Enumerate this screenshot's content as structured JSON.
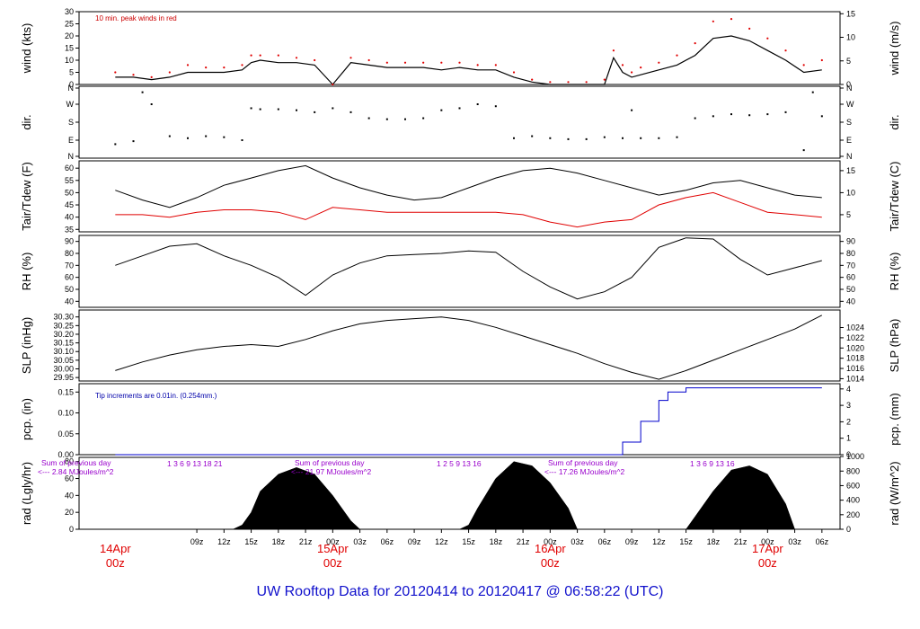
{
  "title": "UW Rooftop Data for 20120414  to  20120417 @ 06:58:22  (UTC)",
  "time_axis": {
    "hour_ticks": [
      "09z",
      "12z",
      "15z",
      "18z",
      "21z",
      "00z",
      "03z",
      "06z",
      "09z",
      "12z",
      "15z",
      "18z",
      "21z",
      "00z",
      "03z",
      "06z",
      "09z",
      "12z",
      "15z",
      "18z",
      "21z",
      "00z",
      "03z",
      "06z"
    ],
    "day_labels": [
      {
        "date": "14Apr",
        "time": "00z"
      },
      {
        "date": "15Apr",
        "time": "00z"
      },
      {
        "date": "16Apr",
        "time": "00z"
      },
      {
        "date": "17Apr",
        "time": "00z"
      }
    ]
  },
  "colors": {
    "primary": "#000000",
    "peak": "#e00000",
    "precip": "#0000cc",
    "title": "#1111cc",
    "radnote": "#9900cc"
  },
  "chart_data": [
    {
      "type": "line",
      "id": "wind",
      "ylabel": "wind (kts)",
      "ylabel_right": "wind (m/s)",
      "ylim": [
        0,
        30
      ],
      "yticks": [
        "0",
        "5",
        "10",
        "15",
        "20",
        "25",
        "30"
      ],
      "yticks_right": [
        "0",
        "5",
        "10",
        "15"
      ],
      "annotation": "10 min. peak winds in red",
      "x_hours": [
        0,
        2,
        4,
        6,
        8,
        10,
        12,
        14,
        15,
        16,
        18,
        20,
        22,
        24,
        26,
        28,
        30,
        32,
        34,
        36,
        38,
        40,
        42,
        44,
        46,
        48,
        50,
        52,
        54,
        55,
        56,
        57,
        58,
        60,
        62,
        64,
        66,
        68,
        70,
        72,
        74,
        76,
        78
      ],
      "series": [
        {
          "values": [
            3,
            3,
            2,
            3,
            5,
            5,
            5,
            6,
            9,
            10,
            9,
            9,
            8,
            0,
            9,
            8,
            7,
            7,
            7,
            6,
            7,
            6,
            6,
            3,
            1,
            0,
            0,
            0,
            0,
            11,
            5,
            3,
            4,
            6,
            8,
            12,
            19,
            20,
            18,
            14,
            10,
            5,
            6
          ]
        },
        {
          "values": [
            5,
            4,
            3,
            5,
            8,
            7,
            7,
            8,
            12,
            12,
            12,
            11,
            10,
            0,
            11,
            10,
            9,
            9,
            9,
            9,
            9,
            8,
            8,
            5,
            2,
            1,
            1,
            1,
            2,
            14,
            8,
            5,
            7,
            9,
            12,
            17,
            26,
            27,
            23,
            19,
            14,
            8,
            10
          ]
        }
      ]
    },
    {
      "type": "scatter",
      "id": "dir",
      "ylabel": "dir.",
      "ylabel_right": "dir.",
      "yticks": [
        "N",
        "E",
        "S",
        "W",
        "N"
      ],
      "yticks_right": [
        "N",
        "E",
        "S",
        "W",
        "N"
      ],
      "ylim": [
        0,
        360
      ],
      "x_hours": [
        0,
        2,
        3,
        4,
        6,
        8,
        10,
        12,
        14,
        15,
        16,
        18,
        20,
        22,
        24,
        26,
        28,
        30,
        32,
        34,
        36,
        38,
        40,
        42,
        44,
        46,
        48,
        50,
        52,
        54,
        56,
        57,
        58,
        60,
        62,
        64,
        66,
        68,
        70,
        72,
        74,
        76,
        77,
        78
      ],
      "values": [
        70,
        85,
        330,
        270,
        110,
        100,
        110,
        105,
        90,
        250,
        245,
        245,
        240,
        230,
        250,
        230,
        200,
        195,
        195,
        200,
        240,
        250,
        270,
        260,
        100,
        110,
        100,
        95,
        95,
        105,
        100,
        240,
        100,
        100,
        105,
        200,
        210,
        220,
        215,
        220,
        230,
        40,
        330,
        210
      ]
    },
    {
      "type": "line",
      "id": "temp",
      "ylabel": "Tair/Tdew (F)",
      "ylabel_right": "Tair/Tdew (C)",
      "ylim": [
        34,
        63
      ],
      "yticks": [
        "35",
        "40",
        "45",
        "50",
        "55",
        "60"
      ],
      "yticks_right": [
        "5",
        "10",
        "15"
      ],
      "x_hours": [
        0,
        3,
        6,
        9,
        12,
        15,
        18,
        21,
        24,
        27,
        30,
        33,
        36,
        39,
        42,
        45,
        48,
        51,
        54,
        57,
        60,
        63,
        66,
        69,
        72,
        75,
        78
      ],
      "series": [
        {
          "values": [
            51,
            47,
            44,
            48,
            53,
            56,
            59,
            61,
            56,
            52,
            49,
            47,
            48,
            52,
            56,
            59,
            60,
            58,
            55,
            52,
            49,
            51,
            54,
            55,
            52,
            49,
            48
          ]
        },
        {
          "values": [
            41,
            41,
            40,
            42,
            43,
            43,
            42,
            39,
            44,
            43,
            42,
            42,
            42,
            42,
            42,
            41,
            38,
            36,
            38,
            39,
            45,
            48,
            50,
            46,
            42,
            41,
            40
          ]
        }
      ]
    },
    {
      "type": "line",
      "id": "rh",
      "ylabel": "RH (%)",
      "ylabel_right": "RH (%)",
      "ylim": [
        35,
        95
      ],
      "yticks": [
        "40",
        "50",
        "60",
        "70",
        "80",
        "90"
      ],
      "yticks_right": [
        "40",
        "50",
        "60",
        "70",
        "80",
        "90"
      ],
      "x_hours": [
        0,
        3,
        6,
        9,
        12,
        15,
        18,
        21,
        24,
        27,
        30,
        33,
        36,
        39,
        42,
        45,
        48,
        51,
        54,
        57,
        60,
        63,
        66,
        69,
        72,
        75,
        78
      ],
      "values": [
        70,
        78,
        86,
        88,
        78,
        70,
        60,
        45,
        62,
        72,
        78,
        79,
        80,
        82,
        81,
        65,
        52,
        42,
        48,
        60,
        85,
        93,
        92,
        75,
        62,
        68,
        74
      ]
    },
    {
      "type": "line",
      "id": "slp",
      "ylabel": "SLP (inHg)",
      "ylabel_right": "SLP (hPa)",
      "ylim": [
        29.93,
        30.34
      ],
      "yticks": [
        "29.95",
        "30.00",
        "30.05",
        "30.10",
        "30.15",
        "30.20",
        "30.25",
        "30.30"
      ],
      "yticks_right": [
        "1014",
        "1016",
        "1018",
        "1020",
        "1022",
        "1024"
      ],
      "x_hours": [
        0,
        3,
        6,
        9,
        12,
        15,
        18,
        21,
        24,
        27,
        30,
        33,
        36,
        39,
        42,
        45,
        48,
        51,
        54,
        57,
        60,
        63,
        66,
        69,
        72,
        75,
        78
      ],
      "values": [
        29.99,
        30.04,
        30.08,
        30.11,
        30.13,
        30.14,
        30.13,
        30.17,
        30.22,
        30.26,
        30.28,
        30.29,
        30.3,
        30.28,
        30.24,
        30.19,
        30.14,
        30.09,
        30.03,
        29.98,
        29.94,
        29.99,
        30.05,
        30.11,
        30.17,
        30.23,
        30.31
      ]
    },
    {
      "type": "line",
      "id": "pcp",
      "ylabel": "pcp. (in)",
      "ylabel_right": "pcp. (mm)",
      "ylim": [
        0,
        0.17
      ],
      "yticks": [
        "0.00",
        "0.05",
        "0.10",
        "0.15"
      ],
      "yticks_right": [
        "0",
        "1",
        "2",
        "3",
        "4"
      ],
      "annotation": "Tip increments are 0.01in. (0.254mm.)",
      "x_hours": [
        0,
        54,
        56,
        58,
        60,
        61,
        63,
        66,
        78
      ],
      "values": [
        0,
        0,
        0.03,
        0.08,
        0.13,
        0.15,
        0.16,
        0.16,
        0.16
      ]
    },
    {
      "type": "area",
      "id": "rad",
      "ylabel": "rad (Lgly/hr)",
      "ylabel_right": "rad (W/m^2)",
      "ylim": [
        0,
        85
      ],
      "yticks": [
        "0",
        "20",
        "40",
        "60",
        "80"
      ],
      "yticks_right": [
        "0",
        "200",
        "400",
        "600",
        "800",
        "1000"
      ],
      "summaries": [
        {
          "line1": "Sum of previous day",
          "line2": "<--- 2.84 MJoules/m^2",
          "hours": "1   3   6  9   13    18   21"
        },
        {
          "line1": "Sum of previous day",
          "line2": "<--- 21.97 MJoules/m^2",
          "hours": "1   2    5   9   13   16"
        },
        {
          "line1": "Sum of previous day",
          "line2": "<--- 17.26 MJoules/m^2",
          "hours": "1   3   6   9   13    16"
        }
      ],
      "x_hours": [
        0,
        13,
        14,
        15,
        16,
        18,
        20,
        22,
        24,
        26,
        27,
        38,
        39,
        40,
        42,
        44,
        46,
        48,
        50,
        51,
        62,
        63,
        64,
        66,
        68,
        70,
        72,
        74,
        75,
        78
      ],
      "values": [
        0,
        0,
        5,
        20,
        45,
        65,
        73,
        65,
        40,
        10,
        0,
        0,
        5,
        25,
        60,
        80,
        75,
        55,
        25,
        0,
        0,
        0,
        15,
        45,
        70,
        75,
        65,
        30,
        0,
        0
      ]
    }
  ]
}
